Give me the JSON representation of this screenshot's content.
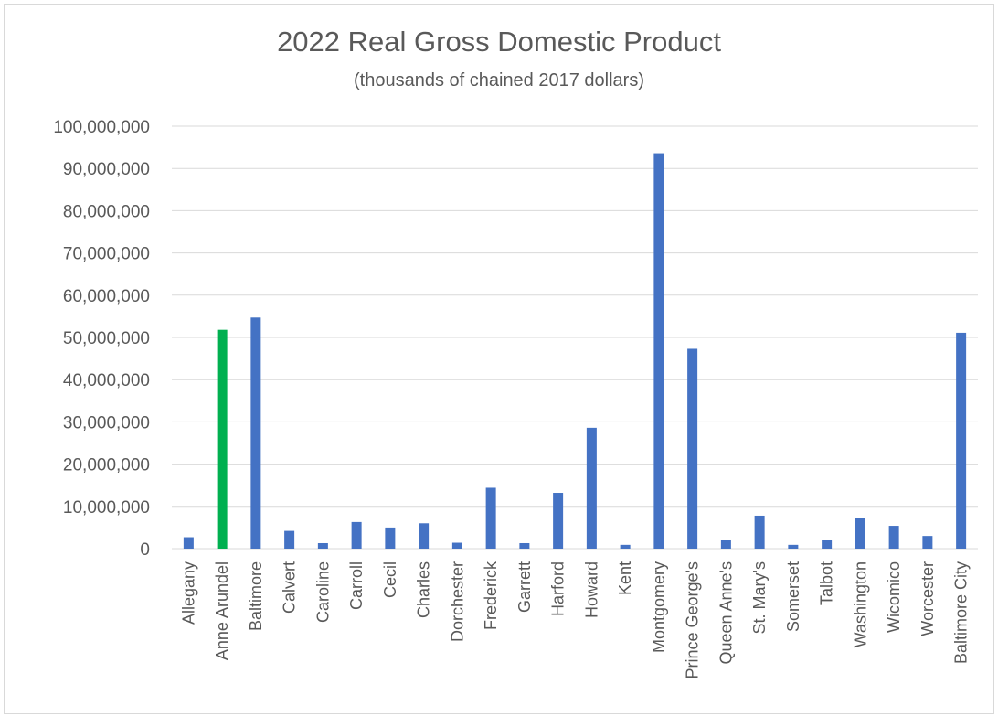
{
  "chart_data": {
    "type": "bar",
    "title": "2022 Real Gross Domestic Product",
    "subtitle": "(thousands of chained 2017 dollars)",
    "xlabel": "",
    "ylabel": "",
    "ylim": [
      0,
      100000000
    ],
    "yticks": [
      "0",
      "10,000,000",
      "20,000,000",
      "30,000,000",
      "40,000,000",
      "50,000,000",
      "60,000,000",
      "70,000,000",
      "80,000,000",
      "90,000,000",
      "100,000,000"
    ],
    "grid": true,
    "legend": "none",
    "categories": [
      "Allegany",
      "Anne Arundel",
      "Baltimore",
      "Calvert",
      "Caroline",
      "Carroll",
      "Cecil",
      "Charles",
      "Dorchester",
      "Frederick",
      "Garrett",
      "Harford",
      "Howard",
      "Kent",
      "Montgomery",
      "Prince George's",
      "Queen Anne's",
      "St. Mary's",
      "Somerset",
      "Talbot",
      "Washington",
      "Wicomico",
      "Worcester",
      "Baltimore City"
    ],
    "values": [
      2700000,
      51800000,
      54700000,
      4200000,
      1300000,
      6300000,
      5000000,
      6000000,
      1400000,
      14400000,
      1300000,
      13200000,
      28600000,
      900000,
      93600000,
      47300000,
      2000000,
      7800000,
      900000,
      2000000,
      7200000,
      5400000,
      3000000,
      51100000
    ],
    "colors": {
      "default": "#4472c4",
      "highlight": "#00b050",
      "gridline": "#d9d9d9",
      "text": "#595959"
    },
    "highlight_category": "Anne Arundel"
  }
}
